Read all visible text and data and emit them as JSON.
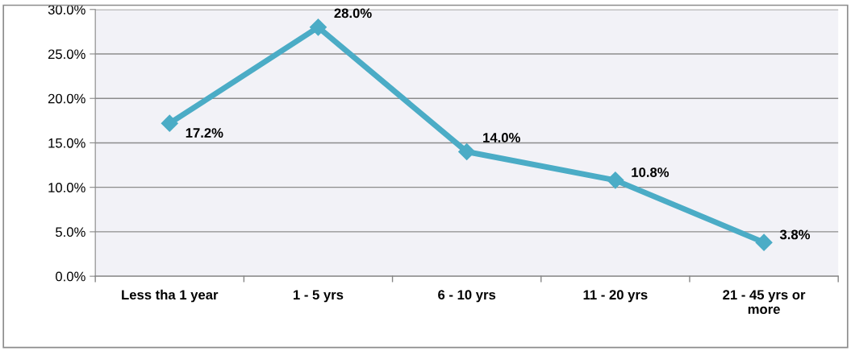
{
  "chart_data": {
    "type": "line",
    "categories": [
      "Less tha 1 year",
      "1 - 5 yrs",
      "6 - 10 yrs",
      "11 - 20 yrs",
      "21 - 45 yrs or\nmore"
    ],
    "values": [
      17.2,
      28.0,
      14.0,
      10.8,
      3.8
    ],
    "value_labels": [
      "17.2%",
      "28.0%",
      "14.0%",
      "10.8%",
      "3.8%"
    ],
    "color": "#4bacc6",
    "marker": "diamond",
    "line_style": "solid",
    "ylim": [
      0,
      30
    ],
    "yticks": [
      {
        "value": 0,
        "label": "0.0%"
      },
      {
        "value": 5,
        "label": "5.0%"
      },
      {
        "value": 10,
        "label": "10.0%"
      },
      {
        "value": 15,
        "label": "15.0%"
      },
      {
        "value": 20,
        "label": "20.0%"
      },
      {
        "value": 25,
        "label": "25.0%"
      },
      {
        "value": 30,
        "label": "30.0%"
      }
    ],
    "grid": "y"
  }
}
